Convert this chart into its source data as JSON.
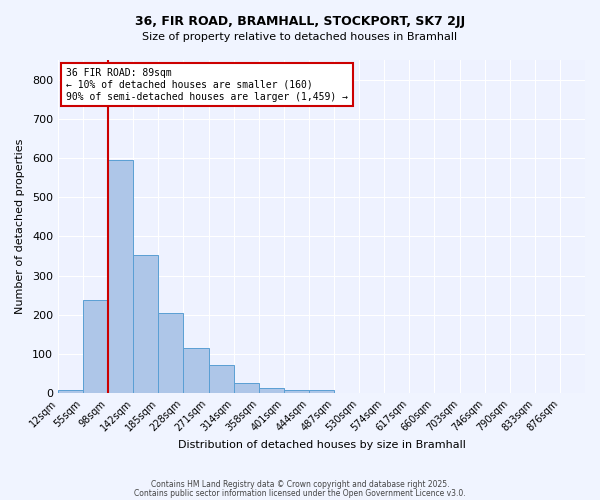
{
  "title1": "36, FIR ROAD, BRAMHALL, STOCKPORT, SK7 2JJ",
  "title2": "Size of property relative to detached houses in Bramhall",
  "xlabel": "Distribution of detached houses by size in Bramhall",
  "ylabel": "Number of detached properties",
  "bin_labels": [
    "12sqm",
    "55sqm",
    "98sqm",
    "142sqm",
    "185sqm",
    "228sqm",
    "271sqm",
    "314sqm",
    "358sqm",
    "401sqm",
    "444sqm",
    "487sqm",
    "530sqm",
    "574sqm",
    "617sqm",
    "660sqm",
    "703sqm",
    "746sqm",
    "790sqm",
    "833sqm",
    "876sqm"
  ],
  "bar_heights": [
    8,
    237,
    595,
    352,
    205,
    115,
    72,
    27,
    14,
    8,
    8,
    0,
    0,
    0,
    0,
    0,
    0,
    0,
    0,
    0,
    0
  ],
  "bar_color": "#aec6e8",
  "bar_edge_color": "#5a9fd4",
  "red_line_x": 2.0,
  "red_line_color": "#cc0000",
  "ylim": [
    0,
    850
  ],
  "yticks": [
    0,
    100,
    200,
    300,
    400,
    500,
    600,
    700,
    800
  ],
  "annotation_text": "36 FIR ROAD: 89sqm\n← 10% of detached houses are smaller (160)\n90% of semi-detached houses are larger (1,459) →",
  "annotation_box_color": "#ffffff",
  "annotation_box_edge_color": "#cc0000",
  "footer1": "Contains HM Land Registry data © Crown copyright and database right 2025.",
  "footer2": "Contains public sector information licensed under the Open Government Licence v3.0.",
  "bg_color": "#f0f4ff",
  "plot_bg_color": "#eef2ff"
}
